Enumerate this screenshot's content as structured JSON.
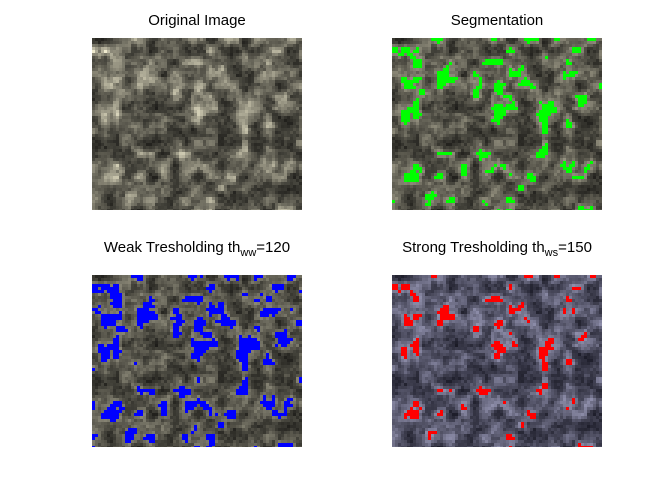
{
  "panels": [
    {
      "id": "original",
      "title": "Original Image",
      "overlay": "none"
    },
    {
      "id": "segmentation",
      "title": "Segmentation",
      "overlay": "#00ff00"
    },
    {
      "id": "weak",
      "title_prefix": "Weak Tresholding th",
      "title_sub": "ww",
      "title_suffix": "=120",
      "overlay": "#0000ff"
    },
    {
      "id": "strong",
      "title_prefix": "Strong Tresholding th",
      "title_sub": "ws",
      "title_suffix": "=150",
      "overlay": "#ff0000"
    }
  ]
}
